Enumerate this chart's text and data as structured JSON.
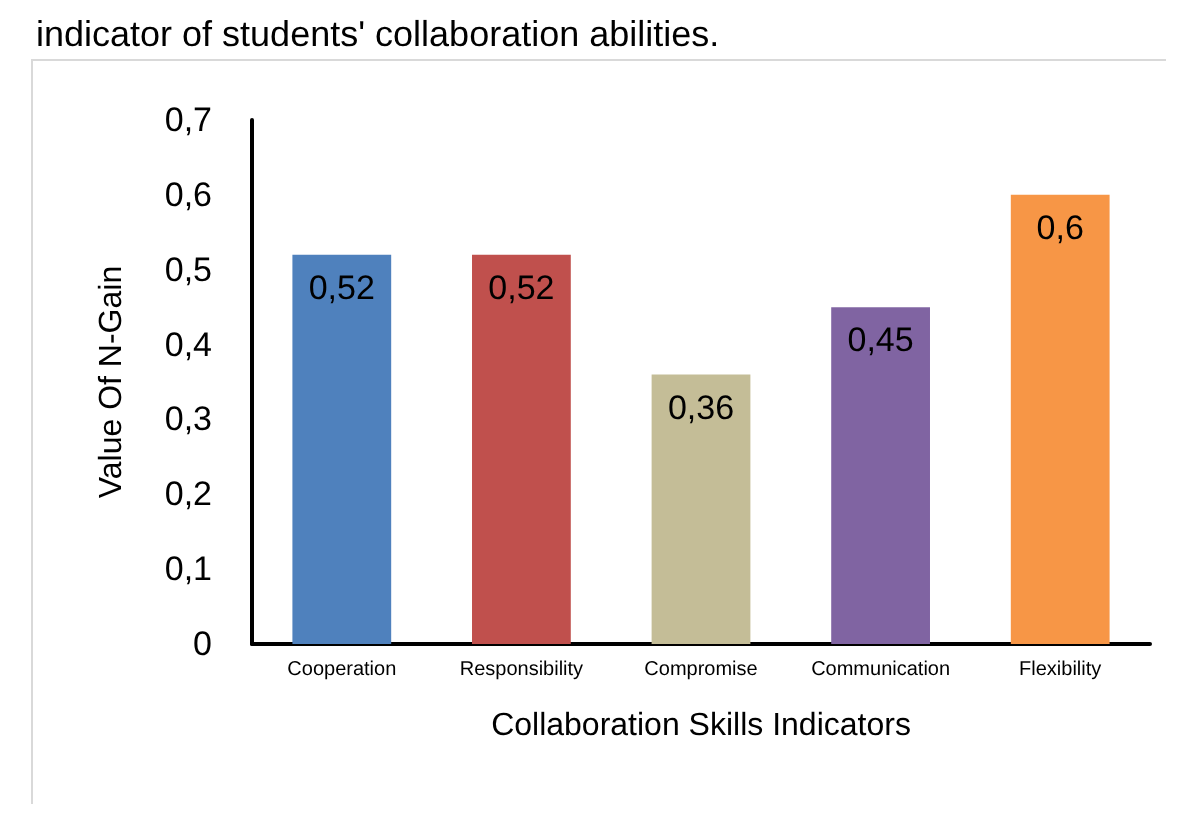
{
  "chart_data": {
    "type": "bar",
    "xlabel": "Collaboration Skills Indicators",
    "ylabel": "Value Of N-Gain",
    "annotations": [
      "indicator of students' collaboration abilities."
    ],
    "categories": [
      "Cooperation",
      "Responsibility",
      "Compromise",
      "Communication",
      "Flexibility"
    ],
    "values": [
      0.52,
      0.52,
      0.36,
      0.45,
      0.6
    ],
    "colors": [
      "#4f81bd",
      "#c0504d",
      "#c4bd97",
      "#8064a2",
      "#f79646"
    ],
    "value_labels": [
      "0,52",
      "0,52",
      "0,36",
      "0,45",
      "0,6"
    ],
    "ylim": [
      0,
      0.7
    ],
    "yticks": [
      0,
      {
        "value": 0.1,
        "label": "0,1"
      },
      {
        "value": 0.2,
        "label": "0,2"
      },
      {
        "value": 0.3,
        "label": "0,3"
      },
      {
        "value": 0.4,
        "label": "0,4"
      },
      {
        "value": 0.5,
        "label": "0,5"
      },
      {
        "value": 0.6,
        "label": "0,6"
      },
      {
        "value": 0.7,
        "label": "0,7"
      }
    ],
    "grid": false
  }
}
